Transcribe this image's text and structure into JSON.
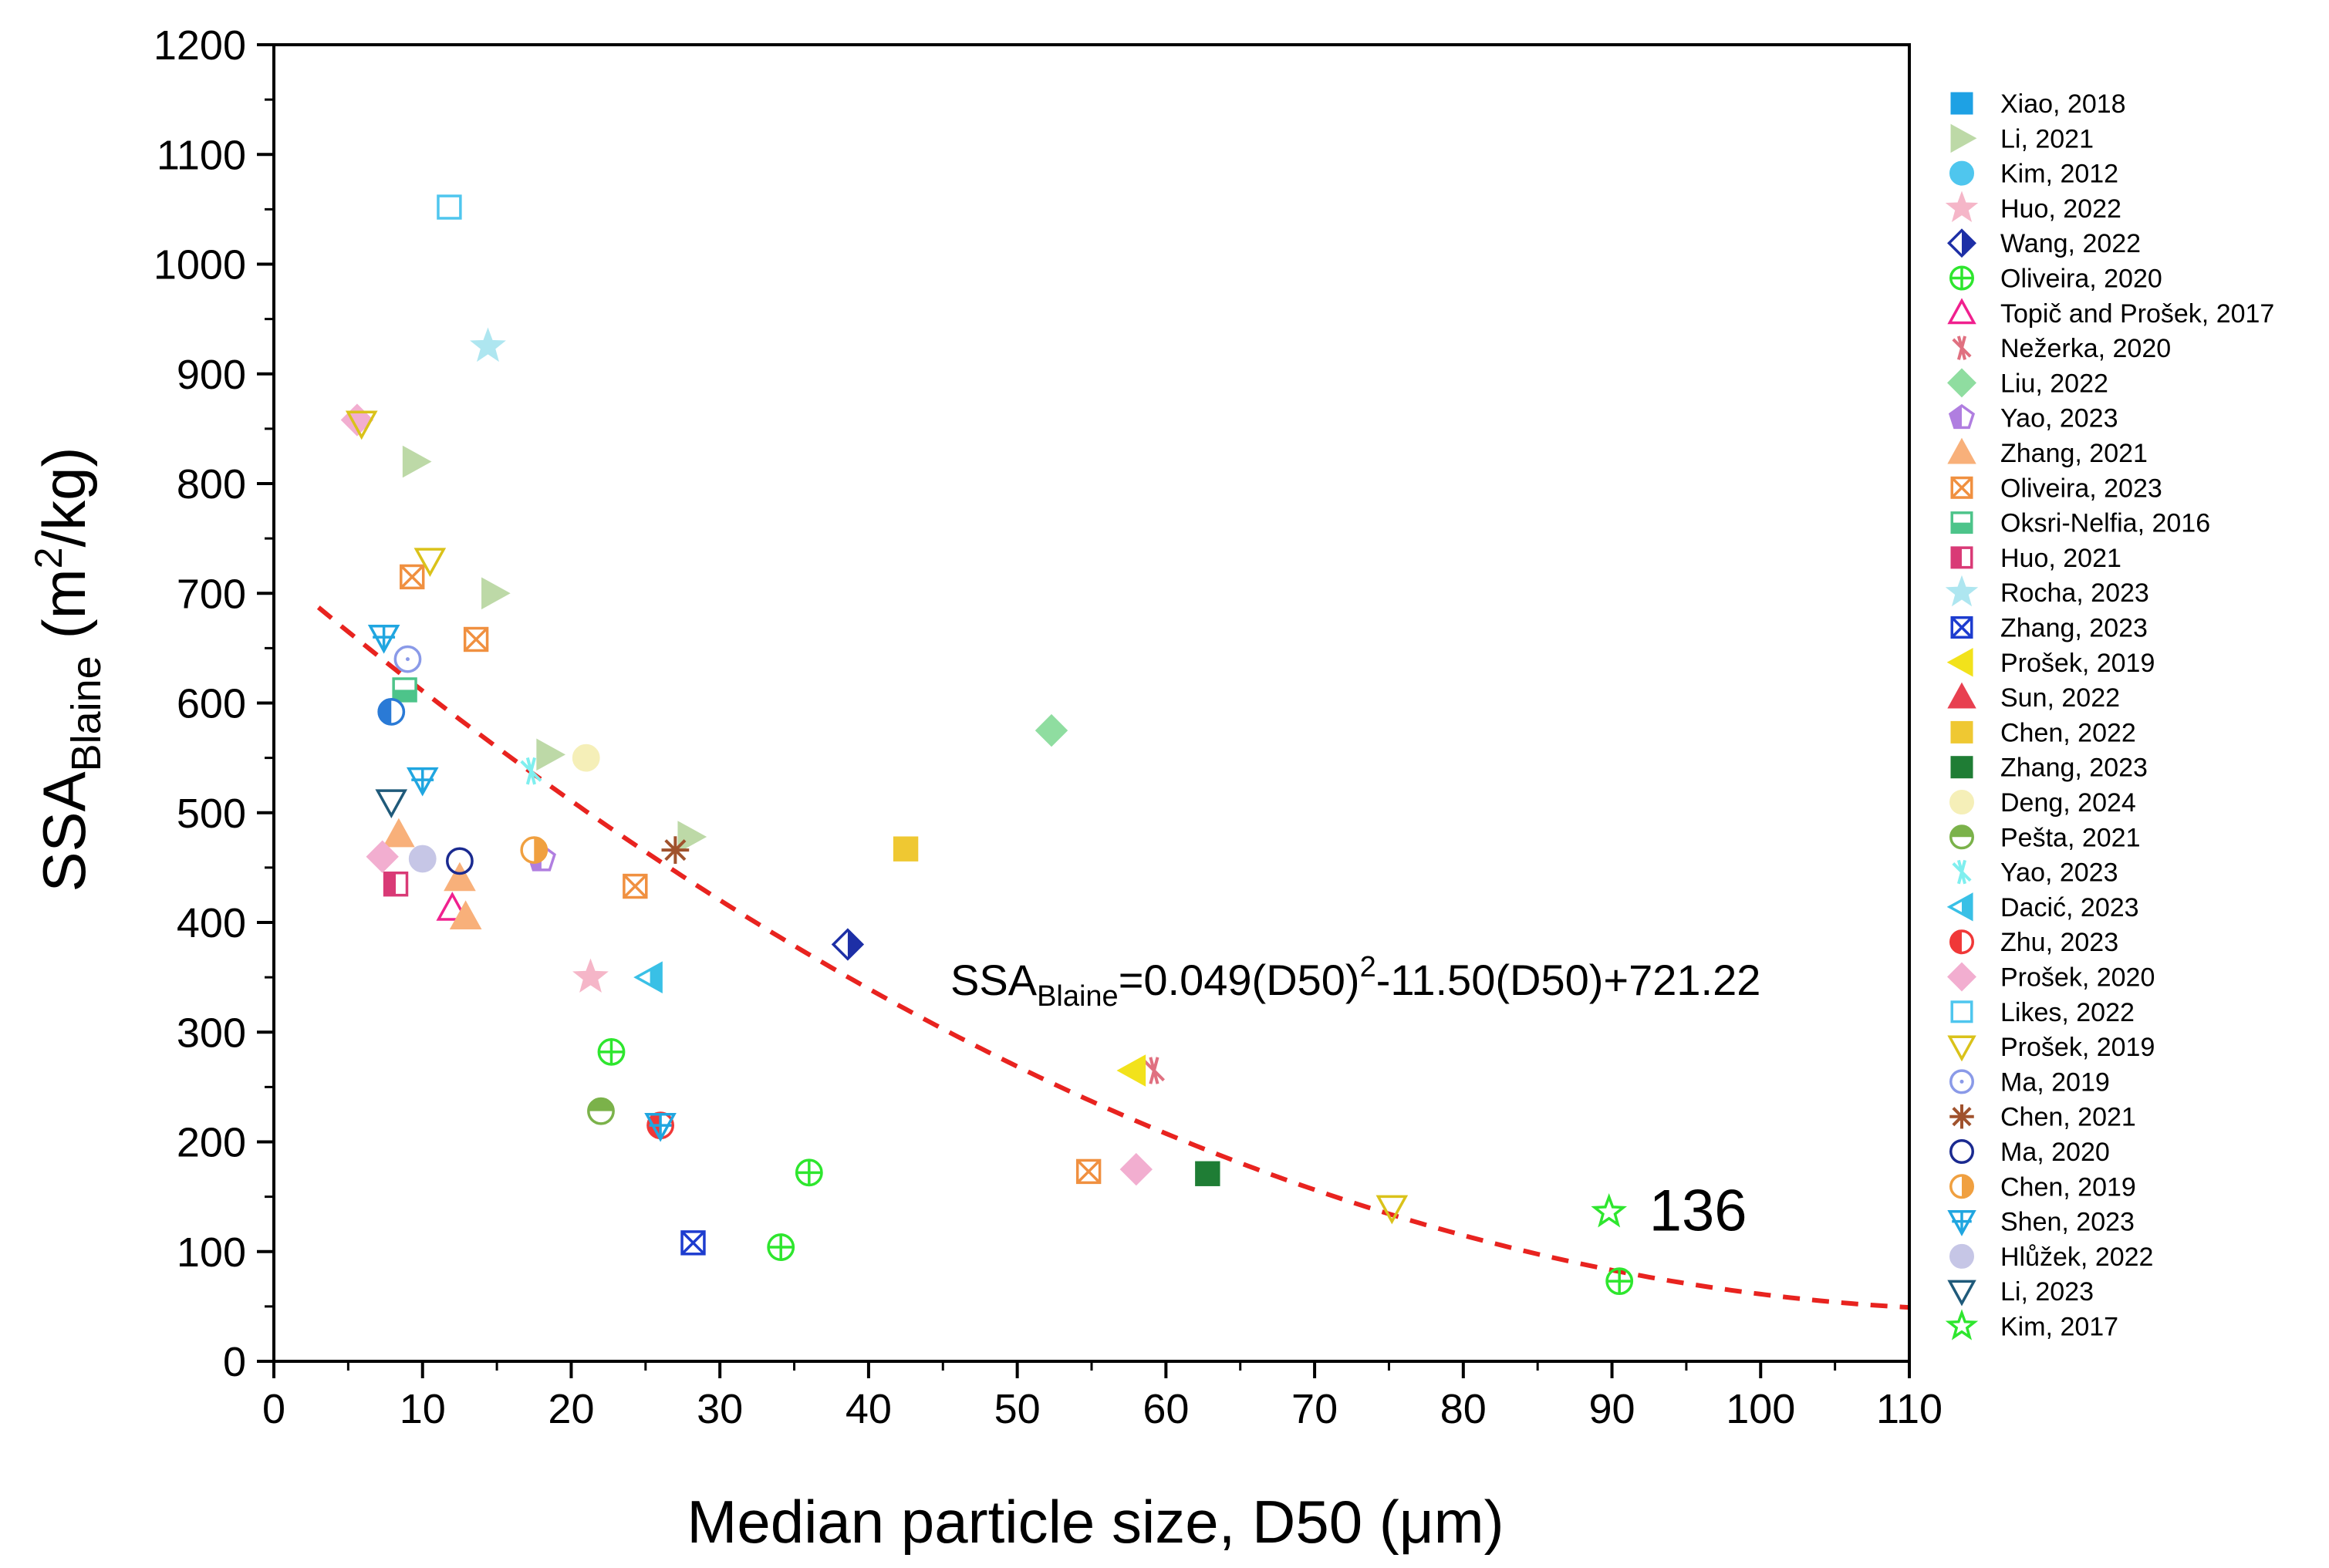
{
  "chart_data": {
    "type": "scatter",
    "title": "",
    "xlabel": "Median particle size, D50 (μm)",
    "ylabel_main": "SSA",
    "ylabel_sub": "Blaine",
    "ylabel_unit": "(m",
    "ylabel_sup": "2",
    "ylabel_unit_end": "/kg)",
    "xlim": [
      0,
      110
    ],
    "ylim": [
      0,
      1200
    ],
    "x_ticks": [
      0,
      10,
      20,
      30,
      40,
      50,
      60,
      70,
      80,
      90,
      100,
      110
    ],
    "y_ticks": [
      0,
      100,
      200,
      300,
      400,
      500,
      600,
      700,
      800,
      900,
      1000,
      1100,
      1200
    ],
    "grid": false,
    "legend_position": "right",
    "fit": {
      "a": 0.049,
      "b": -11.5,
      "c": 721.22,
      "x_range": [
        3,
        110
      ],
      "color": "#e8231f",
      "label_main": "SSA",
      "label_sub": "Blaine",
      "label_part1": "=0.049(D50)",
      "label_sup": "2",
      "label_part2": "-11.50(D50)+721.22"
    },
    "annotation": {
      "text": "136",
      "x": 92.5,
      "y": 136
    },
    "series": [
      {
        "name": "Xiao, 2018",
        "marker": "square",
        "fill": "full",
        "color": "#1ea1e4",
        "points": []
      },
      {
        "name": "Li, 2021",
        "marker": "tri-right",
        "fill": "full",
        "color": "#bdd9a7",
        "points": [
          [
            9.5,
            820
          ],
          [
            14.8,
            700
          ],
          [
            18.5,
            553
          ],
          [
            28,
            478
          ]
        ]
      },
      {
        "name": "Kim, 2012",
        "marker": "circle",
        "fill": "full",
        "color": "#4fc6ee",
        "points": []
      },
      {
        "name": "Huo, 2022",
        "marker": "star",
        "fill": "full",
        "color": "#f5b6c8",
        "points": [
          [
            21.3,
            350
          ]
        ]
      },
      {
        "name": "Wang, 2022",
        "marker": "diamond",
        "fill": "half-right",
        "color": "#1d2fa6",
        "points": [
          [
            38.6,
            380
          ]
        ]
      },
      {
        "name": "Oliveira, 2020",
        "marker": "circle-plus",
        "fill": "open",
        "color": "#2ee62e",
        "points": [
          [
            22.7,
            282
          ],
          [
            36,
            172
          ],
          [
            34.1,
            104
          ],
          [
            90.5,
            73
          ]
        ]
      },
      {
        "name": "Topič and Prošek, 2017",
        "marker": "tri-up",
        "fill": "open",
        "color": "#f0208e",
        "points": [
          [
            12,
            413
          ]
        ]
      },
      {
        "name": "Nežerka, 2020",
        "marker": "asterisk-x",
        "fill": "open",
        "color": "#e07080",
        "points": [
          [
            59.2,
            265
          ]
        ]
      },
      {
        "name": "Liu, 2022",
        "marker": "diamond",
        "fill": "full",
        "color": "#8fdda0",
        "points": [
          [
            52.3,
            575
          ]
        ]
      },
      {
        "name": "Yao, 2023",
        "marker": "pentagon",
        "fill": "half-left",
        "color": "#b07ee0",
        "points": [
          [
            18,
            458
          ]
        ]
      },
      {
        "name": "Zhang, 2021",
        "marker": "tri-up",
        "fill": "full",
        "color": "#f8b07a",
        "points": [
          [
            8.4,
            480
          ],
          [
            12.5,
            440
          ],
          [
            12.9,
            405
          ]
        ]
      },
      {
        "name": "Oliveira, 2023",
        "marker": "x-box",
        "fill": "open",
        "color": "#f09040",
        "points": [
          [
            9.3,
            715
          ],
          [
            13.6,
            658
          ],
          [
            24.3,
            433
          ],
          [
            54.8,
            173
          ]
        ]
      },
      {
        "name": "Oksri-Nelfia, 2016",
        "marker": "square",
        "fill": "half-bottom",
        "color": "#4dc48a",
        "points": [
          [
            8.8,
            612
          ]
        ]
      },
      {
        "name": "Huo, 2021",
        "marker": "square",
        "fill": "half-left",
        "color": "#d93a76",
        "points": [
          [
            8.2,
            435
          ]
        ]
      },
      {
        "name": "Rocha, 2023",
        "marker": "star",
        "fill": "full",
        "color": "#aee6f0",
        "points": [
          [
            14.4,
            925
          ]
        ]
      },
      {
        "name": "Zhang, 2023",
        "marker": "x-box",
        "fill": "open",
        "color": "#1d3ccf",
        "points": [
          [
            28.2,
            108
          ]
        ]
      },
      {
        "name": "Prošek, 2019",
        "marker": "tri-left",
        "fill": "full",
        "color": "#f2e21b",
        "points": [
          [
            57.8,
            265
          ]
        ]
      },
      {
        "name": "Sun, 2022",
        "marker": "tri-up",
        "fill": "full",
        "color": "#e84050",
        "points": []
      },
      {
        "name": "Chen, 2022",
        "marker": "square",
        "fill": "full",
        "color": "#efc832",
        "points": [
          [
            42.5,
            467
          ]
        ]
      },
      {
        "name": "Zhang, 2023",
        "marker": "square",
        "fill": "full",
        "color": "#1f7d35",
        "points": [
          [
            62.8,
            171
          ]
        ]
      },
      {
        "name": "Deng, 2024",
        "marker": "circle",
        "fill": "full",
        "color": "#f5efb8",
        "points": [
          [
            21,
            550
          ]
        ]
      },
      {
        "name": "Pešta, 2021",
        "marker": "circle",
        "fill": "half-top",
        "color": "#7bb24a",
        "points": [
          [
            22,
            228
          ]
        ]
      },
      {
        "name": "Yao, 2023",
        "marker": "asterisk-x",
        "fill": "open",
        "color": "#7fefef",
        "points": [
          [
            17.3,
            538
          ]
        ]
      },
      {
        "name": "Dacić, 2023",
        "marker": "tri-left",
        "fill": "half-right",
        "color": "#39c0e6",
        "points": [
          [
            25.3,
            350
          ]
        ]
      },
      {
        "name": "Zhu, 2023",
        "marker": "circle",
        "fill": "half-left",
        "color": "#f03838",
        "points": [
          [
            26,
            215
          ]
        ]
      },
      {
        "name": "Prošek, 2020",
        "marker": "diamond",
        "fill": "full",
        "color": "#f2aed0",
        "points": [
          [
            5.6,
            858
          ],
          [
            7.3,
            460
          ],
          [
            58,
            175
          ]
        ]
      },
      {
        "name": "Likes, 2022",
        "marker": "square",
        "fill": "open",
        "color": "#4fc6ee",
        "points": [
          [
            11.8,
            1052
          ]
        ]
      },
      {
        "name": "Prošek, 2019",
        "marker": "tri-down",
        "fill": "open",
        "color": "#dac21a",
        "points": [
          [
            5.9,
            855
          ],
          [
            10.5,
            730
          ],
          [
            75.2,
            140
          ]
        ]
      },
      {
        "name": "Ma, 2019",
        "marker": "circle-dot",
        "fill": "open",
        "color": "#8a9ae8",
        "points": [
          [
            9,
            640
          ]
        ]
      },
      {
        "name": "Chen, 2021",
        "marker": "asterisk",
        "fill": "open",
        "color": "#a0522d",
        "points": [
          [
            27,
            466
          ]
        ]
      },
      {
        "name": "Ma, 2020",
        "marker": "circle",
        "fill": "open",
        "color": "#1a2a90",
        "points": [
          [
            12.5,
            456
          ]
        ]
      },
      {
        "name": "Chen, 2019",
        "marker": "circle",
        "fill": "half-right",
        "color": "#f0a040",
        "points": [
          [
            17.5,
            466
          ]
        ]
      },
      {
        "name": "Shen, 2023",
        "marker": "tri-down-plus",
        "fill": "open",
        "color": "#20a6e0",
        "points": [
          [
            7.4,
            660
          ],
          [
            10,
            530
          ],
          [
            26,
            215
          ]
        ]
      },
      {
        "name": "Hlůžek, 2022",
        "marker": "circle",
        "fill": "full",
        "color": "#c6c6e6",
        "points": [
          [
            10,
            458
          ]
        ]
      },
      {
        "name": "Li, 2023",
        "marker": "tri-down",
        "fill": "open",
        "color": "#1f5a7a",
        "points": [
          [
            7.9,
            510
          ]
        ]
      },
      {
        "name": "Kim, 2017",
        "marker": "star",
        "fill": "open",
        "color": "#2ee62e",
        "points": [
          [
            89.8,
            136
          ]
        ]
      },
      {
        "name": "Shen, 2023",
        "marker": "circle",
        "fill": "half-left",
        "color": "#2a7ad6",
        "points": [
          [
            7.9,
            592
          ]
        ],
        "hide_legend": true
      }
    ]
  }
}
